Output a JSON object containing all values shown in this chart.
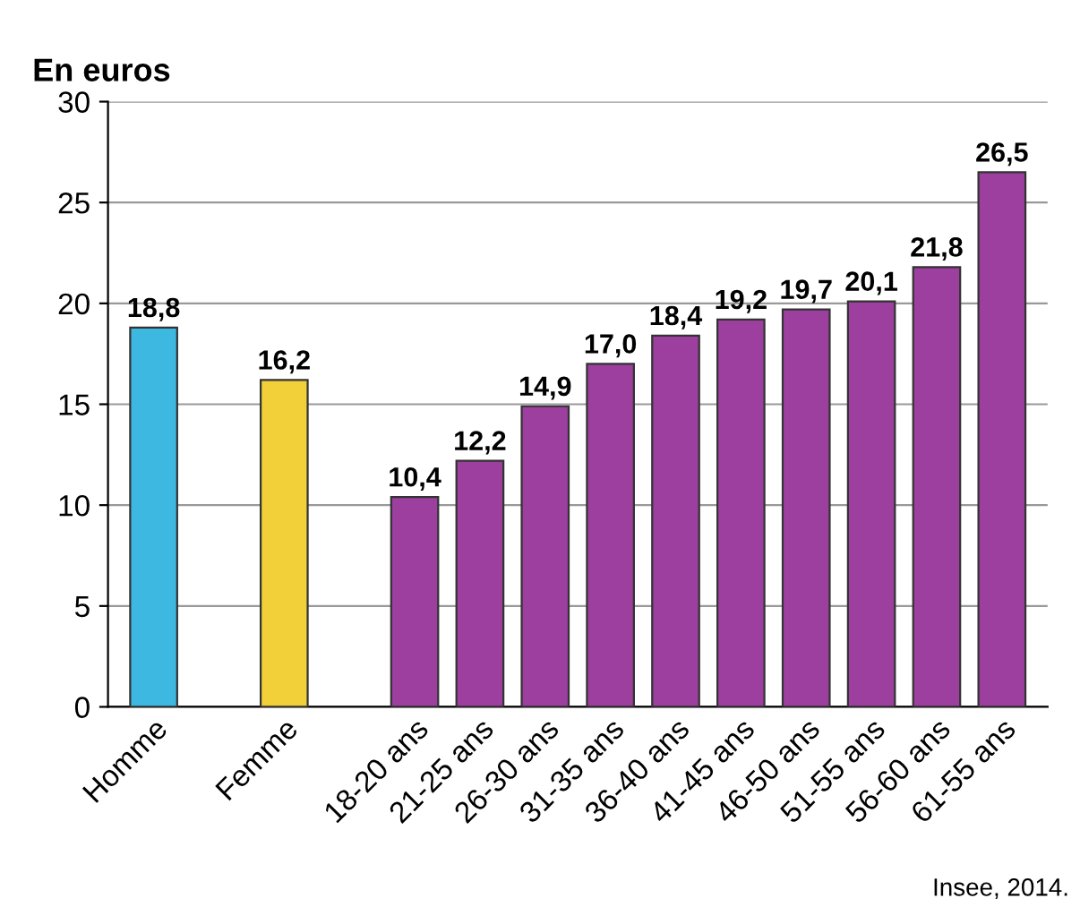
{
  "chart_data": {
    "type": "bar",
    "ylabel": "En euros",
    "categories": [
      "Homme",
      null,
      "Femme",
      null,
      "18-20 ans",
      "21-25 ans",
      "26-30 ans",
      "31-35 ans",
      "36-40 ans",
      "41-45 ans",
      "46-50 ans",
      "51-55 ans",
      "56-60 ans",
      "61-55 ans"
    ],
    "values": [
      18.8,
      null,
      16.2,
      null,
      10.4,
      12.2,
      14.9,
      17.0,
      18.4,
      19.2,
      19.7,
      20.1,
      21.8,
      26.5
    ],
    "value_labels": [
      "18,8",
      null,
      "16,2",
      null,
      "10,4",
      "12,2",
      "14,9",
      "17,0",
      "18,4",
      "19,2",
      "19,7",
      "20,1",
      "21,8",
      "26,5"
    ],
    "colors": [
      "#3db8e0",
      "#3db8e0",
      "#f2d03a",
      "#f2d03a",
      "#9c3f9e",
      "#9c3f9e",
      "#9c3f9e",
      "#9c3f9e",
      "#9c3f9e",
      "#9c3f9e",
      "#9c3f9e",
      "#9c3f9e",
      "#9c3f9e",
      "#9c3f9e"
    ],
    "ylim": [
      0,
      30
    ],
    "yticks": [
      0,
      5,
      10,
      15,
      20,
      25,
      30
    ],
    "grid": "y",
    "annotations": [
      "Insee, 2014."
    ]
  }
}
